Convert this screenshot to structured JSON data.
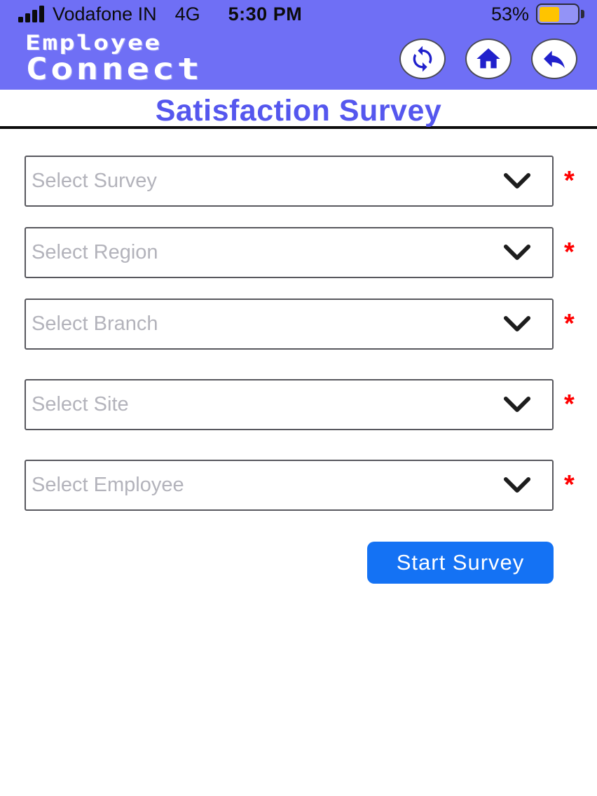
{
  "status_bar": {
    "signal_icon": "signal-bars",
    "carrier": "Vodafone IN",
    "network": "4G",
    "time": "5:30 PM",
    "battery_percent": "53%",
    "battery_icon": "battery-icon"
  },
  "header": {
    "logo_line1": "Employee",
    "logo_line2": "Connect",
    "buttons": [
      {
        "name": "refresh",
        "icon": "refresh-icon"
      },
      {
        "name": "home",
        "icon": "home-icon"
      },
      {
        "name": "back",
        "icon": "back-icon"
      }
    ]
  },
  "page": {
    "title": "Satisfaction Survey"
  },
  "form": {
    "required_marker": "*",
    "fields": [
      {
        "placeholder": "Select Survey",
        "required": true,
        "icon": "chevron-down-icon"
      },
      {
        "placeholder": "Select Region",
        "required": true,
        "icon": "chevron-down-icon"
      },
      {
        "placeholder": "Select Branch",
        "required": true,
        "icon": "chevron-down-icon"
      },
      {
        "placeholder": "Select Site",
        "required": true,
        "icon": "chevron-down-icon"
      },
      {
        "placeholder": "Select Employee",
        "required": true,
        "icon": "chevron-down-icon"
      }
    ],
    "submit_label": "Start Survey"
  },
  "colors": {
    "header_bg": "#6F6FF5",
    "title_text": "#5557EE",
    "circle_icon_blue": "#2121CC",
    "submit_bg": "#1472F4",
    "required_red": "#FF0000",
    "battery_fill": "#FFC400",
    "select_border": "#58585E",
    "placeholder_text": "#B3B3BB"
  }
}
